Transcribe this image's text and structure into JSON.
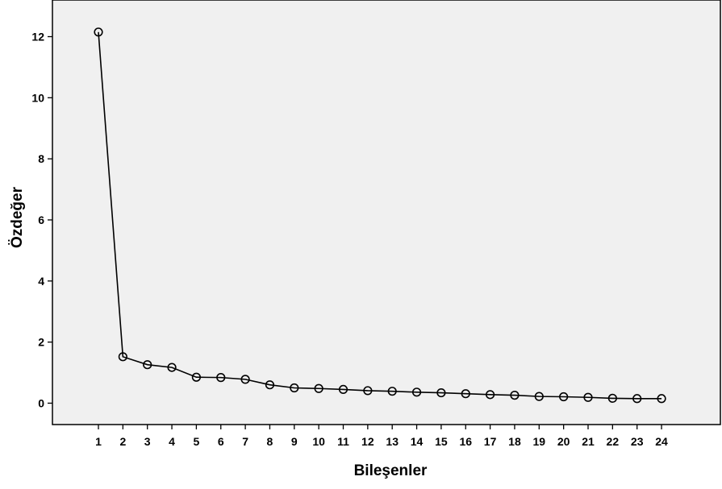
{
  "chart_data": {
    "type": "line",
    "title": "",
    "xlabel": "Bileşenler",
    "ylabel": "Özdeğer",
    "x": [
      1,
      2,
      3,
      4,
      5,
      6,
      7,
      8,
      9,
      10,
      11,
      12,
      13,
      14,
      15,
      16,
      17,
      18,
      19,
      20,
      21,
      22,
      23,
      24
    ],
    "x_tick_labels": [
      "1",
      "2",
      "3",
      "4",
      "5",
      "6",
      "7",
      "8",
      "9",
      "10",
      "11",
      "12",
      "13",
      "14",
      "15",
      "16",
      "17",
      "18",
      "19",
      "20",
      "21",
      "22",
      "23",
      "24"
    ],
    "series": [
      {
        "values": [
          12.15,
          1.52,
          1.26,
          1.17,
          0.85,
          0.84,
          0.78,
          0.6,
          0.5,
          0.48,
          0.45,
          0.41,
          0.39,
          0.36,
          0.34,
          0.31,
          0.28,
          0.26,
          0.22,
          0.21,
          0.19,
          0.16,
          0.15,
          0.15
        ],
        "marker": "open-circle",
        "color": "#000000"
      }
    ],
    "ylim": [
      -0.7,
      13.2
    ],
    "y_ticks": [
      0,
      2,
      4,
      6,
      8,
      10,
      12
    ],
    "grid": false,
    "legend": "none",
    "plot_background": "#f0f0f0"
  }
}
